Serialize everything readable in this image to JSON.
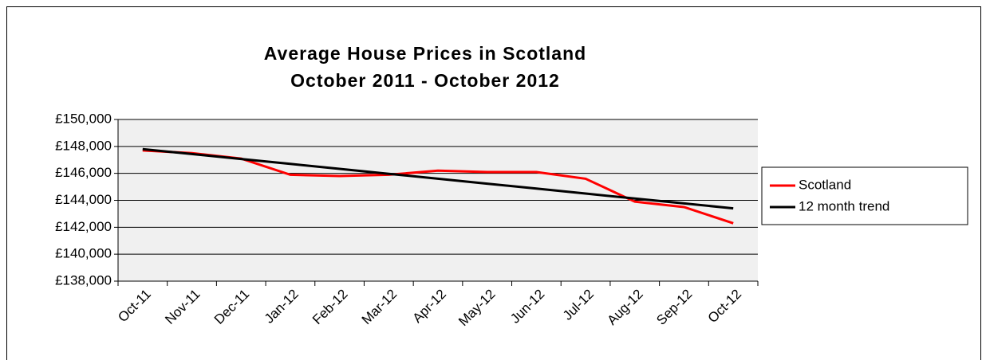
{
  "chart_data": {
    "type": "line",
    "title": "Average House Prices in Scotland",
    "subtitle": "October 2011 - October 2012",
    "categories": [
      "Oct-11",
      "Nov-11",
      "Dec-11",
      "Jan-12",
      "Feb-12",
      "Mar-12",
      "Apr-12",
      "May-12",
      "Jun-12",
      "Jul-12",
      "Aug-12",
      "Sep-12",
      "Oct-12"
    ],
    "series": [
      {
        "name": "Scotland",
        "color": "#ff0000",
        "values": [
          147700,
          147500,
          147100,
          145900,
          145800,
          145900,
          146200,
          146100,
          146100,
          145600,
          143900,
          143500,
          142300
        ]
      },
      {
        "name": "12 month trend",
        "color": "#000000",
        "values": [
          147800,
          147433,
          147067,
          146700,
          146333,
          145967,
          145600,
          145233,
          144867,
          144500,
          144133,
          143767,
          143400
        ]
      }
    ],
    "ylim": [
      138000,
      150000
    ],
    "yticks": [
      {
        "value": 138000,
        "label": "£138,000"
      },
      {
        "value": 140000,
        "label": "£140,000"
      },
      {
        "value": 142000,
        "label": "£142,000"
      },
      {
        "value": 144000,
        "label": "£144,000"
      },
      {
        "value": 146000,
        "label": "£146,000"
      },
      {
        "value": 148000,
        "label": "£148,000"
      },
      {
        "value": 150000,
        "label": "£150,000"
      }
    ],
    "grid": true,
    "legend": "right"
  }
}
